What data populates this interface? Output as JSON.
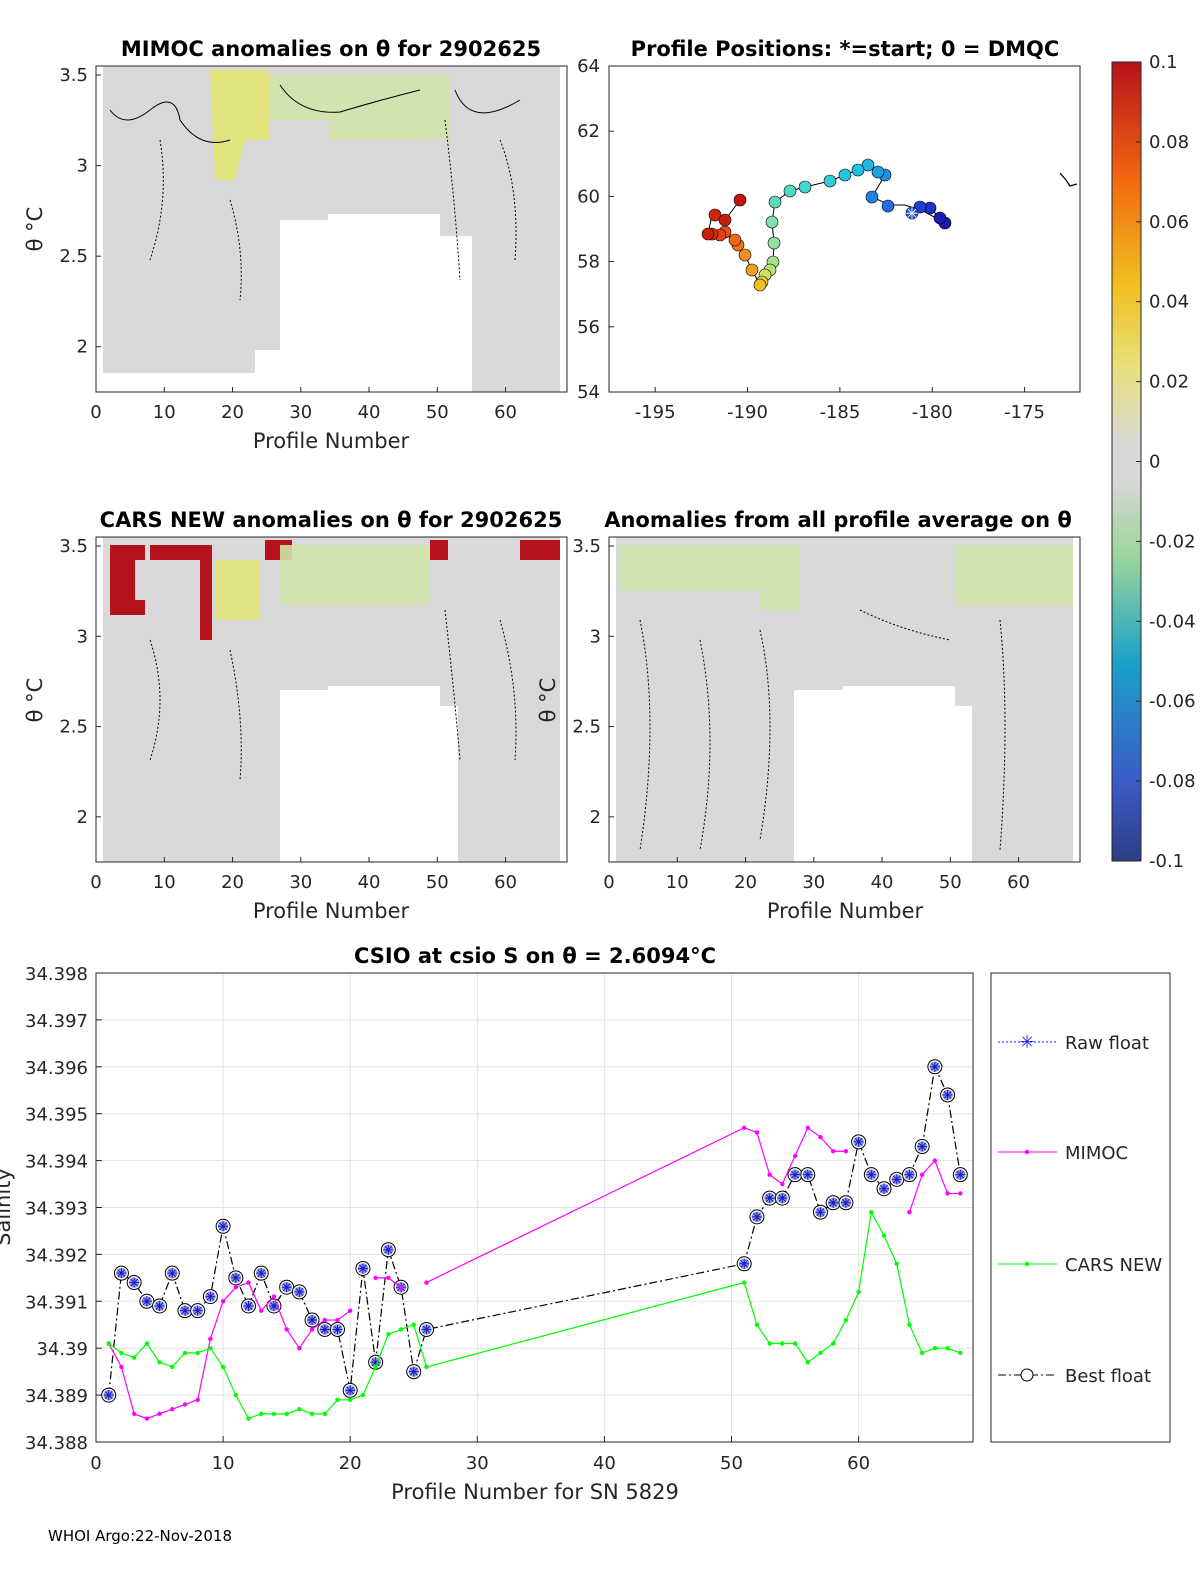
{
  "footer": "WHOI Argo:22-Nov-2018",
  "panels": {
    "mimoc": {
      "title": "MIMOC anomalies on θ  for 2902625",
      "xlabel": "Profile Number",
      "ylabel": "θ °C",
      "xticks": [
        "0",
        "10",
        "20",
        "30",
        "40",
        "50",
        "60"
      ],
      "yticks": [
        "2",
        "2.5",
        "3",
        "3.5"
      ]
    },
    "positions": {
      "title": "Profile Positions: *=start; 0 = DMQC",
      "xticks": [
        "-195",
        "-190",
        "-185",
        "-180",
        "-175"
      ],
      "yticks": [
        "54",
        "56",
        "58",
        "60",
        "62",
        "64"
      ]
    },
    "cars": {
      "title": "CARS NEW anomalies on θ for 2902625",
      "xlabel": "Profile Number",
      "ylabel": "θ °C",
      "xticks": [
        "0",
        "10",
        "20",
        "30",
        "40",
        "50",
        "60"
      ],
      "yticks": [
        "2",
        "2.5",
        "3",
        "3.5"
      ]
    },
    "allavg": {
      "title": "Anomalies from all profile average on θ",
      "xlabel": "Profile Number",
      "ylabel": "θ °C",
      "xticks": [
        "0",
        "10",
        "20",
        "30",
        "40",
        "50",
        "60"
      ],
      "yticks": [
        "2",
        "2.5",
        "3",
        "3.5"
      ]
    }
  },
  "colorbar": {
    "ticks": [
      "0.1",
      "0.08",
      "0.06",
      "0.04",
      "0.02",
      "0",
      "-0.02",
      "-0.04",
      "-0.06",
      "-0.08",
      "-0.1"
    ]
  },
  "chart_data": {
    "type": "line",
    "title": "CSIO at csio S on θ = 2.6094°C",
    "xlabel": "Profile Number for SN 5829",
    "ylabel": "Salinity",
    "xlim": [
      0,
      69
    ],
    "ylim": [
      34.388,
      34.398
    ],
    "xticks": [
      "0",
      "10",
      "20",
      "30",
      "40",
      "50",
      "60"
    ],
    "yticks": [
      "34.388",
      "34.389",
      "34.39",
      "34.391",
      "34.392",
      "34.393",
      "34.394",
      "34.395",
      "34.396",
      "34.397",
      "34.398"
    ],
    "legend": [
      "Raw float",
      "MIMOC",
      "CARS NEW",
      "Best float"
    ],
    "series": [
      {
        "name": "Best float",
        "x": [
          1,
          2,
          3,
          4,
          5,
          6,
          7,
          8,
          9,
          10,
          11,
          12,
          13,
          14,
          15,
          16,
          17,
          18,
          19,
          20,
          21,
          22,
          23,
          24,
          25,
          26,
          51,
          52,
          53,
          54,
          55,
          56,
          57,
          58,
          59,
          60,
          61,
          62,
          63,
          64,
          65,
          66,
          67,
          68
        ],
        "y": [
          34.389,
          34.3916,
          34.3914,
          34.391,
          34.3909,
          34.3916,
          34.3908,
          34.3908,
          34.3911,
          34.3926,
          34.3915,
          34.3909,
          34.3916,
          34.3909,
          34.3913,
          34.3912,
          34.3906,
          34.3904,
          34.3904,
          34.3891,
          34.3917,
          34.3897,
          34.3921,
          34.3913,
          34.3895,
          34.3904,
          34.3918,
          34.3928,
          34.3932,
          34.3932,
          34.3937,
          34.3937,
          34.3929,
          34.3931,
          34.3931,
          34.3944,
          34.3937,
          34.3934,
          34.3936,
          34.3937,
          34.3943,
          34.396,
          34.3954,
          34.3937
        ]
      },
      {
        "name": "MIMOC",
        "x": [
          1,
          2,
          3,
          4,
          5,
          6,
          7,
          8,
          9,
          10,
          11,
          12,
          13,
          14,
          15,
          16,
          17,
          18,
          19,
          20,
          null,
          22,
          23,
          24,
          null,
          26,
          51,
          52,
          53,
          54,
          55,
          56,
          57,
          58,
          59,
          null,
          64,
          65,
          66,
          67,
          68
        ],
        "y": [
          34.3901,
          34.3896,
          34.3886,
          34.3885,
          34.3886,
          34.3887,
          34.3888,
          34.3889,
          34.3902,
          34.391,
          34.3913,
          34.3914,
          34.3908,
          34.3911,
          34.3904,
          34.39,
          34.3904,
          34.3906,
          34.3906,
          34.3908,
          null,
          34.3915,
          34.3915,
          34.3913,
          null,
          34.3914,
          34.3947,
          34.3946,
          34.3937,
          34.3935,
          34.3941,
          34.3947,
          34.3945,
          34.3942,
          34.3942,
          null,
          34.3929,
          34.3937,
          34.394,
          34.3933,
          34.3933
        ]
      },
      {
        "name": "CARS NEW",
        "x": [
          1,
          2,
          3,
          4,
          5,
          6,
          7,
          8,
          9,
          10,
          11,
          12,
          13,
          14,
          15,
          16,
          17,
          18,
          19,
          20,
          21,
          22,
          23,
          24,
          25,
          26,
          51,
          52,
          53,
          54,
          55,
          56,
          57,
          58,
          59,
          60,
          61,
          62,
          63,
          64,
          65,
          66,
          67,
          68
        ],
        "y": [
          34.3901,
          34.3899,
          34.3898,
          34.3901,
          34.3897,
          34.3896,
          34.3899,
          34.3899,
          34.39,
          34.3896,
          34.389,
          34.3885,
          34.3886,
          34.3886,
          34.3886,
          34.3887,
          34.3886,
          34.3886,
          34.3889,
          34.3889,
          34.389,
          34.3896,
          34.3903,
          34.3904,
          34.3905,
          34.3896,
          34.3914,
          34.3905,
          34.3901,
          34.3901,
          34.3901,
          34.3897,
          34.3899,
          34.3901,
          34.3906,
          34.3912,
          34.3929,
          34.3924,
          34.3918,
          34.3905,
          34.3899,
          34.39,
          34.39,
          34.3899
        ]
      }
    ]
  }
}
